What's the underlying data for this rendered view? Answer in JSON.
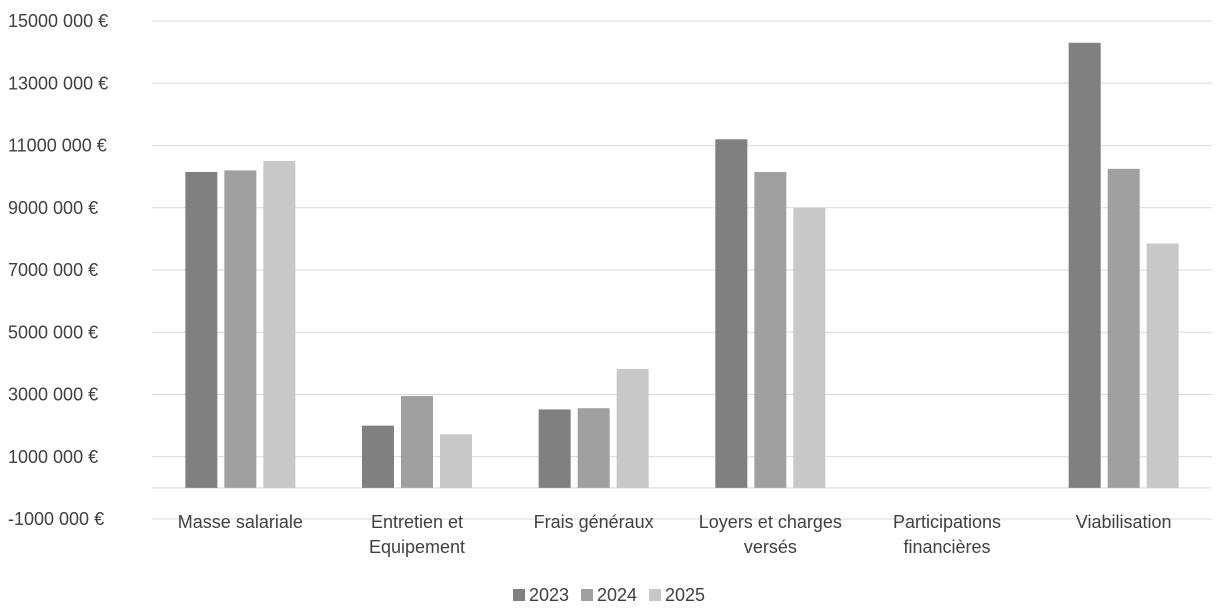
{
  "chart_data": {
    "type": "bar",
    "categories": [
      [
        "Masse salariale"
      ],
      [
        "Entretien et",
        "Equipement"
      ],
      [
        "Frais généraux"
      ],
      [
        "Loyers et charges",
        "versés"
      ],
      [
        "Participations",
        "financières"
      ],
      [
        "Viabilisation"
      ]
    ],
    "series": [
      {
        "name": "2023",
        "color": "#808080",
        "values": [
          10150000,
          2000000,
          2520000,
          11200000,
          0,
          14300000
        ]
      },
      {
        "name": "2024",
        "color": "#a0a0a0",
        "values": [
          10200000,
          2950000,
          2560000,
          10150000,
          0,
          10250000
        ]
      },
      {
        "name": "2025",
        "color": "#c8c8c8",
        "values": [
          10500000,
          1720000,
          3820000,
          9000000,
          0,
          7850000
        ]
      }
    ],
    "ylim": [
      -1000000,
      15000000
    ],
    "yticks": [
      15000000,
      13000000,
      11000000,
      9000000,
      7000000,
      5000000,
      3000000,
      1000000,
      -1000000
    ],
    "ytick_labels": [
      "15000 000 €",
      "13000 000 €",
      "11000 000 €",
      "9000 000 €",
      "7000 000 €",
      "5000 000 €",
      "3000 000 €",
      "1000 000 €",
      "-1000 000 €"
    ],
    "grid": true,
    "legend_position": "bottom"
  }
}
